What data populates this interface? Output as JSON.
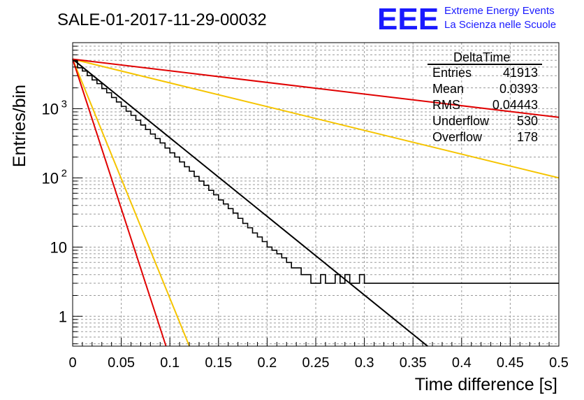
{
  "header": {
    "run_title": "SALE-01-2017-11-29-00032",
    "logo_text": "EEE",
    "logo_line1": "Extreme Energy Events",
    "logo_line2": "La Scienza nelle Scuole",
    "logo_color": "#1a1aff"
  },
  "stats": {
    "title": "DeltaTime",
    "rows": [
      {
        "label": "Entries",
        "value": "41913"
      },
      {
        "label": "Mean",
        "value": "0.0393"
      },
      {
        "label": "RMS",
        "value": "0.04443"
      },
      {
        "label": "Underflow",
        "value": "530"
      },
      {
        "label": "Overflow",
        "value": "178"
      }
    ]
  },
  "chart_data": {
    "type": "line",
    "xlabel": "Time difference [s]",
    "ylabel": "Entries/bin",
    "xlim": [
      0,
      0.5
    ],
    "ylim": [
      0.37,
      9000
    ],
    "yscale": "log",
    "grid": true,
    "x_ticks": [
      "0",
      "0.05",
      "0.1",
      "0.15",
      "0.2",
      "0.25",
      "0.3",
      "0.35",
      "0.4",
      "0.45",
      "0.5"
    ],
    "y_ticks": [
      {
        "value": 1,
        "label": "1",
        "sup": ""
      },
      {
        "value": 10,
        "label": "10",
        "sup": ""
      },
      {
        "value": 100,
        "label": "10",
        "sup": "2"
      },
      {
        "value": 1000,
        "label": "10",
        "sup": "3"
      }
    ],
    "histogram": {
      "name": "DeltaTime",
      "color": "#000000",
      "bin_width": 0.005,
      "values": [
        4900,
        3900,
        3500,
        3000,
        2600,
        2300,
        1950,
        1700,
        1450,
        1250,
        1080,
        920,
        800,
        680,
        580,
        500,
        430,
        370,
        320,
        270,
        230,
        200,
        170,
        145,
        125,
        105,
        90,
        78,
        66,
        57,
        48,
        42,
        36,
        31,
        26,
        22,
        19,
        16,
        14,
        12,
        10,
        9,
        8,
        7,
        6,
        5,
        5,
        4,
        4,
        3,
        3,
        4,
        3,
        3,
        4,
        3,
        4,
        3,
        3,
        4,
        3,
        3,
        3,
        3,
        3,
        3,
        3,
        3,
        3,
        3,
        3,
        3,
        3,
        3,
        3,
        3,
        3,
        3,
        3,
        3,
        3,
        3,
        3,
        3,
        3,
        3,
        3,
        3,
        3,
        3,
        3,
        3,
        3,
        3,
        3,
        3,
        3,
        3,
        3,
        3
      ]
    },
    "fit_lines": [
      {
        "color": "#000000",
        "x": [
          0,
          0.365
        ],
        "y": [
          5200,
          0.37
        ]
      },
      {
        "color": "#f5c400",
        "x": [
          0,
          0.12
        ],
        "y": [
          5200,
          0.37
        ]
      },
      {
        "color": "#e00000",
        "x": [
          0,
          0.096
        ],
        "y": [
          5200,
          0.37
        ]
      },
      {
        "color": "#f5c400",
        "x": [
          0,
          0.5
        ],
        "y": [
          5200,
          100
        ]
      },
      {
        "color": "#e00000",
        "x": [
          0,
          0.5
        ],
        "y": [
          5200,
          750
        ]
      }
    ]
  }
}
